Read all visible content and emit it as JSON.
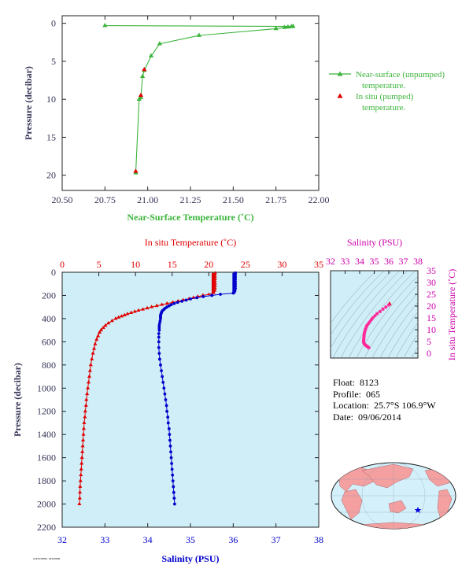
{
  "float_info": {
    "float_label": "Float:",
    "float_value": "8123",
    "profile_label": "Profile:",
    "profile_value": "065",
    "location_label": "Location:",
    "location_value": "25.7°S  106.9°W",
    "date_label": "Date:",
    "date_value": "09/06/2014"
  },
  "footer_code": "AL8123P065_20140906",
  "colors": {
    "near_surface": "#3cb43c",
    "in_situ_temp": "#e00000",
    "salinity": "#0000cc",
    "ts_points": "#ff2a9a",
    "plot_bg": "#cfeef8",
    "axis_text": "#333355",
    "salinity_title": "#cc00aa"
  },
  "chart_data": [
    {
      "type": "line",
      "id": "near-surface-temperature",
      "xlabel": "Near-Surface Temperature (˚C)",
      "ylabel": "Pressure (decibar)",
      "xlim": [
        20.5,
        22.0
      ],
      "ylim": [
        22,
        -1
      ],
      "y_inverted": true,
      "xticks": [
        "20.50",
        "20.75",
        "21.00",
        "21.25",
        "21.50",
        "21.75",
        "22.00"
      ],
      "yticks": [
        "0",
        "5",
        "10",
        "15",
        "20"
      ],
      "legend_position": "right",
      "series": [
        {
          "name": "Near-surface (unpumped) temperature.",
          "marker": "triangle",
          "x": [
            20.75,
            21.85,
            21.84,
            21.82,
            21.8,
            21.75,
            21.3,
            21.07,
            21.02,
            20.98,
            20.97,
            20.96,
            20.95,
            20.93
          ],
          "y": [
            0.3,
            0.4,
            0.45,
            0.5,
            0.55,
            0.7,
            1.6,
            2.7,
            4.3,
            6.2,
            7.0,
            9.8,
            10.0,
            19.7
          ]
        },
        {
          "name": "In situ (pumped) temperature.",
          "marker": "triangle",
          "x": [
            20.98,
            20.96,
            20.93
          ],
          "y": [
            6.1,
            9.5,
            19.5
          ]
        }
      ]
    },
    {
      "type": "line",
      "id": "temperature-salinity-profile",
      "xlabel_top": "In situ Temperature (˚C)",
      "xlabel_bottom": "Salinity (PSU)",
      "ylabel": "Pressure (decibar)",
      "xlim_top": [
        0,
        35
      ],
      "xlim_bottom": [
        32,
        38
      ],
      "ylim": [
        2200,
        0
      ],
      "y_inverted": true,
      "xticks_top": [
        "0",
        "5",
        "10",
        "15",
        "20",
        "25",
        "30",
        "35"
      ],
      "xticks_bottom": [
        "32",
        "33",
        "34",
        "35",
        "36",
        "37",
        "38"
      ],
      "yticks": [
        "0",
        "200",
        "400",
        "600",
        "800",
        "1000",
        "1200",
        "1400",
        "1600",
        "1800",
        "2000",
        "2200"
      ],
      "series": [
        {
          "name": "In situ Temperature",
          "axis": "top",
          "marker": "triangle",
          "pressure": [
            5,
            20,
            40,
            60,
            80,
            100,
            120,
            140,
            160,
            180,
            190,
            200,
            210,
            220,
            230,
            240,
            250,
            260,
            270,
            280,
            290,
            300,
            310,
            320,
            330,
            340,
            350,
            360,
            370,
            380,
            390,
            400,
            420,
            440,
            460,
            480,
            500,
            520,
            550,
            580,
            620,
            660,
            700,
            750,
            800,
            850,
            900,
            950,
            1000,
            1050,
            1100,
            1150,
            1200,
            1250,
            1300,
            1350,
            1400,
            1450,
            1500,
            1550,
            1600,
            1650,
            1700,
            1750,
            1800,
            1850,
            1900,
            1950,
            2000
          ],
          "values": [
            20.9,
            20.9,
            20.9,
            20.9,
            20.9,
            20.9,
            20.9,
            20.9,
            20.85,
            20.7,
            20.0,
            19.2,
            18.5,
            17.9,
            17.3,
            16.5,
            15.8,
            15.1,
            14.3,
            13.6,
            12.9,
            12.2,
            11.6,
            11.0,
            10.4,
            9.9,
            9.4,
            8.9,
            8.5,
            8.1,
            7.7,
            7.3,
            6.8,
            6.3,
            5.9,
            5.6,
            5.3,
            5.1,
            4.9,
            4.7,
            4.5,
            4.35,
            4.2,
            4.05,
            3.9,
            3.8,
            3.7,
            3.6,
            3.5,
            3.4,
            3.3,
            3.25,
            3.15,
            3.1,
            3.0,
            2.95,
            2.9,
            2.85,
            2.8,
            2.75,
            2.7,
            2.65,
            2.6,
            2.55,
            2.5,
            2.45,
            2.42,
            2.4,
            2.35
          ]
        },
        {
          "name": "Salinity",
          "axis": "bottom",
          "marker": "circle",
          "pressure": [
            5,
            20,
            40,
            60,
            80,
            100,
            120,
            140,
            160,
            180,
            190,
            200,
            210,
            220,
            230,
            240,
            250,
            260,
            270,
            280,
            290,
            300,
            310,
            320,
            330,
            340,
            350,
            360,
            370,
            380,
            390,
            400,
            420,
            440,
            460,
            480,
            500,
            530,
            560,
            600,
            650,
            700,
            750,
            800,
            850,
            900,
            950,
            1000,
            1050,
            1100,
            1150,
            1200,
            1250,
            1300,
            1350,
            1400,
            1450,
            1500,
            1550,
            1600,
            1650,
            1700,
            1750,
            1800,
            1850,
            1900,
            1950,
            2000
          ],
          "values": [
            36.05,
            36.05,
            36.05,
            36.05,
            36.05,
            36.05,
            36.05,
            36.05,
            36.04,
            36.0,
            35.7,
            35.5,
            35.3,
            35.15,
            35.0,
            34.9,
            34.8,
            34.7,
            34.62,
            34.55,
            34.5,
            34.45,
            34.41,
            34.38,
            34.35,
            34.33,
            34.32,
            34.31,
            34.3,
            34.3,
            34.3,
            34.3,
            34.29,
            34.28,
            34.27,
            34.27,
            34.27,
            34.26,
            34.26,
            34.26,
            34.26,
            34.27,
            34.28,
            34.3,
            34.32,
            34.34,
            34.36,
            34.38,
            34.4,
            34.42,
            34.44,
            34.45,
            34.47,
            34.48,
            34.5,
            34.51,
            34.52,
            34.53,
            34.54,
            34.55,
            34.56,
            34.57,
            34.58,
            34.59,
            34.6,
            34.61,
            34.62,
            34.63
          ]
        }
      ]
    },
    {
      "type": "scatter",
      "id": "temperature-salinity-diagram",
      "title": "Salinity (PSU)",
      "xlabel": "Salinity (PSU)",
      "ylabel": "In situ Temperature (˚C)",
      "xlim": [
        32,
        38
      ],
      "ylim": [
        -2,
        35
      ],
      "xticks": [
        "32",
        "33",
        "34",
        "35",
        "36",
        "37",
        "38"
      ],
      "yticks": [
        "0",
        "5",
        "10",
        "15",
        "20",
        "25",
        "30",
        "35"
      ],
      "x": [
        36.05,
        36.0,
        35.8,
        35.6,
        35.4,
        35.2,
        35.05,
        34.9,
        34.8,
        34.7,
        34.6,
        34.5,
        34.45,
        34.4,
        34.36,
        34.33,
        34.31,
        34.3,
        34.29,
        34.28,
        34.27,
        34.27,
        34.28,
        34.3,
        34.33,
        34.36,
        34.4,
        34.44,
        34.48,
        34.52,
        34.56,
        34.6,
        34.63
      ],
      "y": [
        20.9,
        20.5,
        19.6,
        18.7,
        17.7,
        16.8,
        15.9,
        15.0,
        14.2,
        13.4,
        12.6,
        11.8,
        11.0,
        10.2,
        9.4,
        8.7,
        8.0,
        7.3,
        6.6,
        6.0,
        5.4,
        4.9,
        4.5,
        4.2,
        3.9,
        3.7,
        3.5,
        3.3,
        3.1,
        2.9,
        2.7,
        2.5,
        2.35
      ]
    }
  ]
}
